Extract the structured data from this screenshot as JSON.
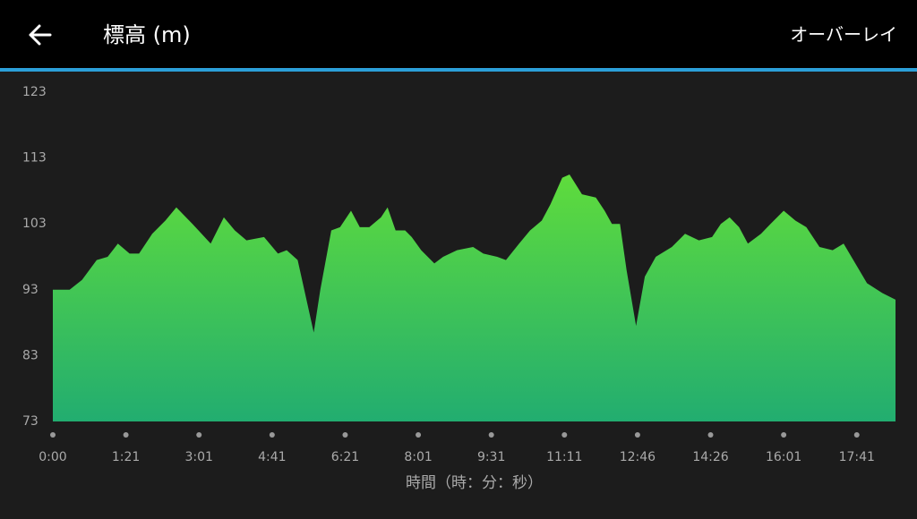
{
  "header": {
    "title": "標高 (m)",
    "action": "オーバーレイ"
  },
  "chart_data": {
    "type": "area",
    "x_label": "時間（時：分：秒）",
    "x": [
      0,
      0.23,
      0.4,
      0.6,
      0.75,
      0.89,
      1.05,
      1.18,
      1.36,
      1.54,
      1.69,
      1.91,
      2.16,
      2.34,
      2.49,
      2.65,
      2.89,
      3.08,
      3.2,
      3.35,
      3.44,
      3.57,
      3.66,
      3.81,
      3.93,
      4.08,
      4.2,
      4.33,
      4.49,
      4.58,
      4.69,
      4.82,
      4.91,
      5.04,
      5.22,
      5.34,
      5.53,
      5.75,
      5.89,
      6.08,
      6.2,
      6.38,
      6.53,
      6.69,
      6.81,
      6.97,
      7.07,
      7.24,
      7.43,
      7.55,
      7.65,
      7.76,
      7.85,
      7.98,
      8.1,
      8.25,
      8.47,
      8.65,
      8.84,
      9.02,
      9.14,
      9.26,
      9.39,
      9.51,
      9.69,
      9.82,
      10.0,
      10.16,
      10.31,
      10.49,
      10.67,
      10.82,
      10.98,
      11.14,
      11.35,
      11.53
    ],
    "values": [
      93,
      93,
      94.5,
      97.5,
      98,
      100,
      98.5,
      98.5,
      101.5,
      103.5,
      105.5,
      103,
      100,
      104,
      102,
      100.5,
      101,
      98.5,
      99,
      97.5,
      93,
      86.5,
      93,
      102,
      102.5,
      105,
      102.5,
      102.5,
      104,
      105.5,
      102,
      102,
      101,
      99,
      97,
      98,
      99,
      99.5,
      98.5,
      98,
      97.5,
      100,
      102,
      103.5,
      106,
      110,
      110.5,
      107.5,
      107,
      105,
      103,
      103,
      96,
      87.5,
      95,
      98,
      99.5,
      101.5,
      100.5,
      101,
      103,
      104,
      102.5,
      100,
      101.5,
      103,
      105,
      103.5,
      102.5,
      99.5,
      99,
      100,
      97,
      94,
      92.5,
      91.5
    ],
    "color": [
      "#5fdc3c",
      "#22ad70"
    ],
    "xlim": [
      0,
      11.53
    ],
    "xticks": [
      {
        "value": 0,
        "label": "0:00"
      },
      {
        "value": 1,
        "label": "1:21"
      },
      {
        "value": 2,
        "label": "3:01"
      },
      {
        "value": 3,
        "label": "4:41"
      },
      {
        "value": 4,
        "label": "6:21"
      },
      {
        "value": 5,
        "label": "8:01"
      },
      {
        "value": 6,
        "label": "9:31"
      },
      {
        "value": 7,
        "label": "11:11"
      },
      {
        "value": 8,
        "label": "12:46"
      },
      {
        "value": 9,
        "label": "14:26"
      },
      {
        "value": 10,
        "label": "16:01"
      },
      {
        "value": 11,
        "label": "17:41"
      }
    ],
    "ylim": [
      73,
      123
    ],
    "yticks": [
      73,
      83,
      93,
      103,
      113,
      123
    ]
  }
}
